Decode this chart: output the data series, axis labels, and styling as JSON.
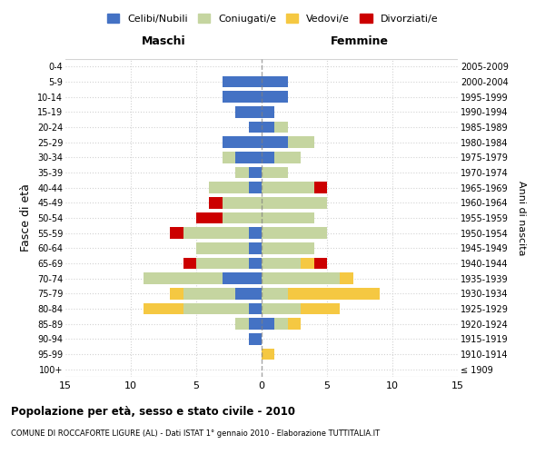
{
  "age_groups": [
    "100+",
    "95-99",
    "90-94",
    "85-89",
    "80-84",
    "75-79",
    "70-74",
    "65-69",
    "60-64",
    "55-59",
    "50-54",
    "45-49",
    "40-44",
    "35-39",
    "30-34",
    "25-29",
    "20-24",
    "15-19",
    "10-14",
    "5-9",
    "0-4"
  ],
  "birth_years": [
    "≤ 1909",
    "1910-1914",
    "1915-1919",
    "1920-1924",
    "1925-1929",
    "1930-1934",
    "1935-1939",
    "1940-1944",
    "1945-1949",
    "1950-1954",
    "1955-1959",
    "1960-1964",
    "1965-1969",
    "1970-1974",
    "1975-1979",
    "1980-1984",
    "1985-1989",
    "1990-1994",
    "1995-1999",
    "2000-2004",
    "2005-2009"
  ],
  "maschi": {
    "celibi": [
      0,
      0,
      1,
      1,
      1,
      2,
      3,
      1,
      1,
      1,
      0,
      0,
      1,
      1,
      2,
      3,
      1,
      2,
      3,
      3,
      0
    ],
    "coniugati": [
      0,
      0,
      0,
      1,
      5,
      4,
      6,
      4,
      4,
      5,
      3,
      3,
      3,
      1,
      1,
      0,
      0,
      0,
      0,
      0,
      0
    ],
    "vedovi": [
      0,
      0,
      0,
      0,
      3,
      1,
      0,
      0,
      0,
      0,
      0,
      0,
      0,
      0,
      0,
      0,
      0,
      0,
      0,
      0,
      0
    ],
    "divorziati": [
      0,
      0,
      0,
      0,
      0,
      0,
      0,
      1,
      0,
      1,
      2,
      1,
      0,
      0,
      0,
      0,
      0,
      0,
      0,
      0,
      0
    ]
  },
  "femmine": {
    "nubili": [
      0,
      0,
      0,
      1,
      0,
      0,
      0,
      0,
      0,
      0,
      0,
      0,
      0,
      0,
      1,
      2,
      1,
      1,
      2,
      2,
      0
    ],
    "coniugate": [
      0,
      0,
      0,
      1,
      3,
      2,
      6,
      3,
      4,
      5,
      4,
      5,
      4,
      2,
      2,
      2,
      1,
      0,
      0,
      0,
      0
    ],
    "vedove": [
      0,
      1,
      0,
      1,
      3,
      7,
      1,
      1,
      0,
      0,
      0,
      0,
      0,
      0,
      0,
      0,
      0,
      0,
      0,
      0,
      0
    ],
    "divorziate": [
      0,
      0,
      0,
      0,
      0,
      0,
      0,
      1,
      0,
      0,
      0,
      0,
      1,
      0,
      0,
      0,
      0,
      0,
      0,
      0,
      0
    ]
  },
  "colors": {
    "celibi": "#4472C4",
    "coniugati": "#C5D5A0",
    "vedovi": "#F5C842",
    "divorziati": "#CC0000"
  },
  "xlim": 15,
  "title": "Popolazione per età, sesso e stato civile - 2010",
  "subtitle": "COMUNE DI ROCCAFORTE LIGURE (AL) - Dati ISTAT 1° gennaio 2010 - Elaborazione TUTTITALIA.IT",
  "ylabel": "Fasce di età",
  "ylabel_right": "Anni di nascita",
  "legend_labels": [
    "Celibi/Nubili",
    "Coniugati/e",
    "Vedovi/e",
    "Divorziati/e"
  ]
}
